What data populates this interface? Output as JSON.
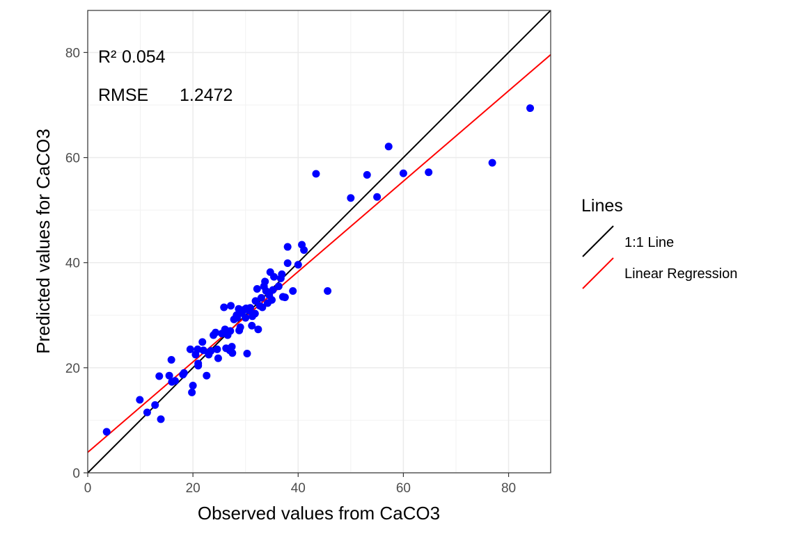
{
  "chart_data": {
    "type": "scatter",
    "xlabel": "Observed values from CaCO3",
    "ylabel": "Predicted values for CaCO3",
    "xlim": [
      0,
      88
    ],
    "ylim": [
      0,
      88
    ],
    "x_ticks": [
      0,
      20,
      40,
      60,
      80
    ],
    "y_ticks": [
      0,
      20,
      40,
      60,
      80
    ],
    "grid": true,
    "point_color": "#0000ff",
    "annotations": {
      "r2_label": "R²",
      "r2_value": "0.054",
      "rmse_label": "RMSE",
      "rmse_value": "1.2472"
    },
    "lines": [
      {
        "name": "1:1 Line",
        "color": "#000000",
        "intercept": 0,
        "slope": 1
      },
      {
        "name": "Linear Regression",
        "color": "#ff0000",
        "intercept": 3.9,
        "slope": 0.86
      }
    ],
    "legend": {
      "title": "Lines",
      "position": "right"
    },
    "points": [
      [
        3.6,
        7.8
      ],
      [
        9.9,
        13.9
      ],
      [
        11.3,
        11.5
      ],
      [
        12.8,
        12.9
      ],
      [
        13.6,
        18.4
      ],
      [
        13.9,
        10.2
      ],
      [
        15.5,
        18.5
      ],
      [
        15.9,
        21.5
      ],
      [
        16.0,
        17.3
      ],
      [
        16.6,
        17.5
      ],
      [
        18.1,
        18.7
      ],
      [
        18.3,
        19.0
      ],
      [
        19.5,
        23.5
      ],
      [
        19.8,
        15.3
      ],
      [
        20.0,
        16.6
      ],
      [
        20.5,
        22.5
      ],
      [
        20.9,
        23.5
      ],
      [
        21.0,
        20.8
      ],
      [
        21.0,
        20.4
      ],
      [
        21.8,
        24.9
      ],
      [
        22.0,
        23.3
      ],
      [
        22.6,
        18.5
      ],
      [
        23.0,
        22.5
      ],
      [
        23.4,
        23.2
      ],
      [
        23.9,
        26.2
      ],
      [
        24.3,
        26.7
      ],
      [
        24.6,
        23.5
      ],
      [
        24.8,
        21.8
      ],
      [
        25.5,
        26.5
      ],
      [
        25.9,
        31.5
      ],
      [
        26.1,
        27.3
      ],
      [
        26.3,
        23.7
      ],
      [
        26.6,
        26.2
      ],
      [
        27.0,
        23.3
      ],
      [
        27.1,
        27.0
      ],
      [
        27.2,
        31.8
      ],
      [
        27.4,
        24.0
      ],
      [
        27.5,
        22.8
      ],
      [
        27.8,
        29.2
      ],
      [
        28.3,
        30.0
      ],
      [
        28.4,
        29.5
      ],
      [
        28.7,
        31.2
      ],
      [
        28.8,
        27.1
      ],
      [
        29.0,
        27.7
      ],
      [
        29.3,
        30.4
      ],
      [
        29.6,
        31.0
      ],
      [
        30.0,
        29.5
      ],
      [
        30.1,
        31.3
      ],
      [
        30.3,
        22.7
      ],
      [
        30.6,
        30.9
      ],
      [
        30.9,
        31.4
      ],
      [
        31.2,
        28.0
      ],
      [
        31.3,
        29.8
      ],
      [
        31.8,
        30.3
      ],
      [
        31.9,
        32.7
      ],
      [
        32.2,
        35.0
      ],
      [
        32.4,
        27.3
      ],
      [
        32.7,
        31.8
      ],
      [
        33.0,
        33.3
      ],
      [
        33.2,
        31.5
      ],
      [
        33.5,
        35.5
      ],
      [
        33.7,
        36.4
      ],
      [
        33.9,
        34.6
      ],
      [
        34.2,
        32.3
      ],
      [
        34.5,
        33.8
      ],
      [
        34.7,
        38.2
      ],
      [
        35.0,
        32.9
      ],
      [
        35.2,
        34.8
      ],
      [
        35.4,
        37.3
      ],
      [
        36.3,
        35.5
      ],
      [
        36.7,
        37.0
      ],
      [
        36.9,
        37.8
      ],
      [
        37.1,
        33.5
      ],
      [
        37.5,
        33.4
      ],
      [
        38.0,
        43.0
      ],
      [
        38.0,
        39.9
      ],
      [
        39.0,
        34.6
      ],
      [
        40.0,
        39.6
      ],
      [
        40.7,
        43.4
      ],
      [
        41.1,
        42.4
      ],
      [
        43.4,
        56.9
      ],
      [
        45.6,
        34.6
      ],
      [
        50.0,
        52.3
      ],
      [
        53.1,
        56.7
      ],
      [
        55.0,
        52.5
      ],
      [
        57.2,
        62.1
      ],
      [
        60.0,
        57.0
      ],
      [
        64.8,
        57.2
      ],
      [
        76.9,
        59.0
      ],
      [
        84.1,
        69.4
      ]
    ]
  }
}
